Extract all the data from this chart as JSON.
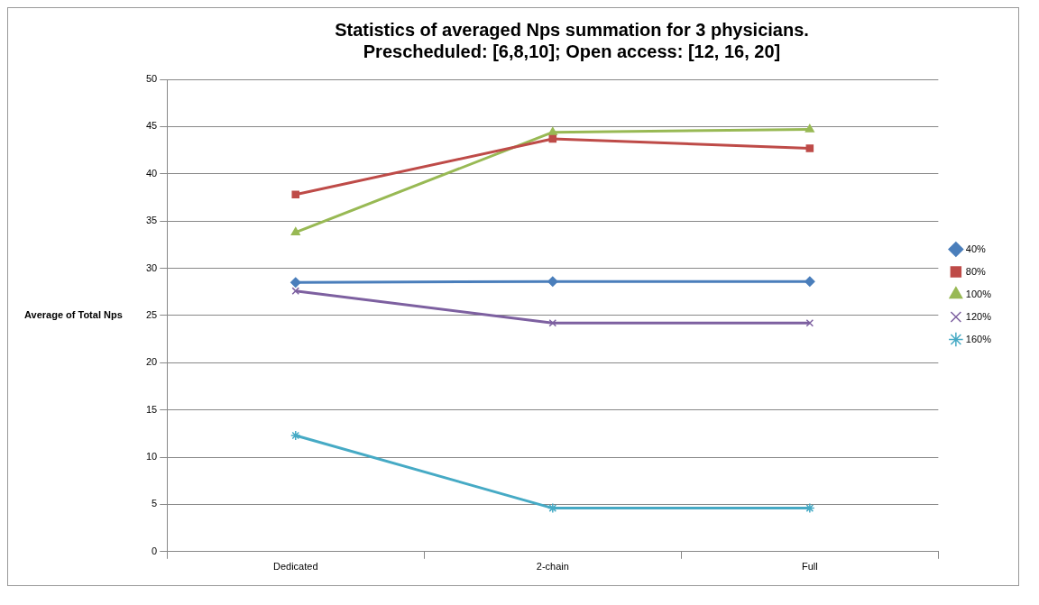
{
  "chart_data": {
    "type": "line",
    "title": "Statistics of averaged Nps summation for 3 physicians.\nPrescheduled: [6,8,10]; Open access: [12, 16, 20]",
    "ylabel": "Average of Total Nps",
    "categories": [
      "Dedicated",
      "2-chain",
      "Full"
    ],
    "series": [
      {
        "name": "40%",
        "color": "#4a7ebb",
        "marker": "diamond",
        "values": [
          28.5,
          28.6,
          28.6
        ]
      },
      {
        "name": "80%",
        "color": "#be4b48",
        "marker": "square",
        "values": [
          37.8,
          43.7,
          42.7
        ]
      },
      {
        "name": "100%",
        "color": "#98b954",
        "marker": "triangle",
        "values": [
          33.8,
          44.4,
          44.7
        ]
      },
      {
        "name": "120%",
        "color": "#7d60a0",
        "marker": "cross",
        "values": [
          27.6,
          24.2,
          24.2
        ]
      },
      {
        "name": "160%",
        "color": "#46aac5",
        "marker": "cross",
        "values": [
          12.3,
          4.6,
          4.6
        ]
      }
    ],
    "ylim": [
      0,
      50
    ],
    "yticks": [
      0,
      5,
      10,
      15,
      20,
      25,
      30,
      35,
      40,
      45,
      50
    ],
    "grid": "y",
    "legend": "right",
    "line_style": "solid"
  }
}
